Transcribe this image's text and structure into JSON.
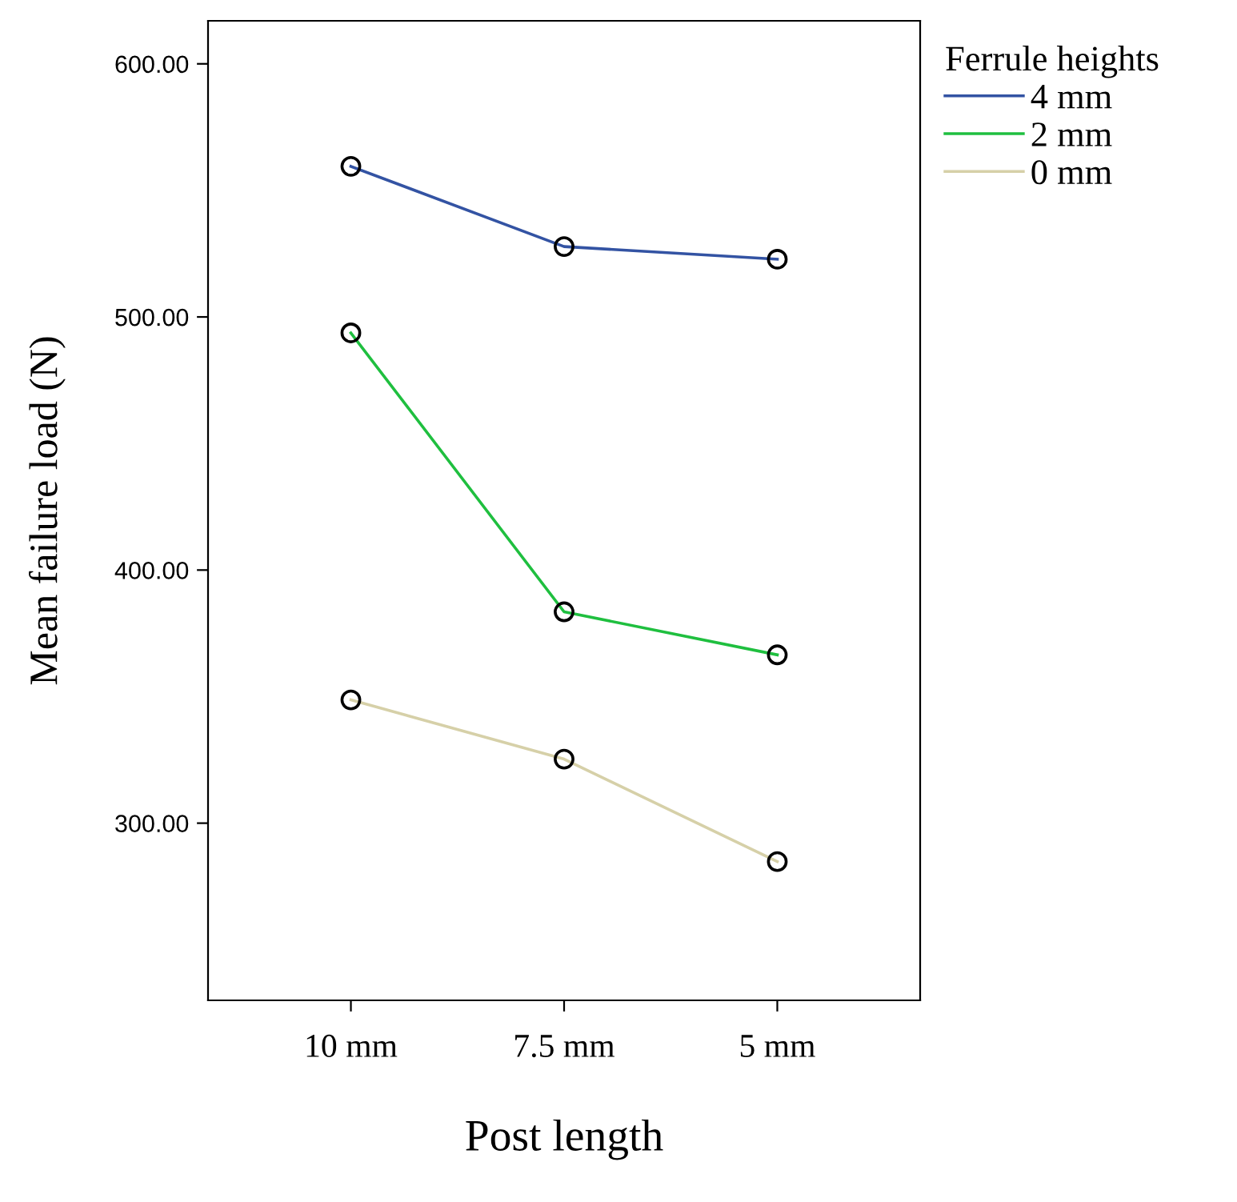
{
  "chart_data": {
    "type": "line",
    "xlabel": "Post length",
    "ylabel": "Mean failure load (N)",
    "legend_title": "Ferrule heights",
    "categories": [
      "10 mm",
      "7.5 mm",
      "5 mm"
    ],
    "series": [
      {
        "name": "4 mm",
        "color": "#3353a3",
        "values": [
          559.5,
          527.8,
          522.8
        ]
      },
      {
        "name": "2 mm",
        "color": "#1fbf3f",
        "values": [
          493.7,
          383.5,
          366.5
        ]
      },
      {
        "name": "0 mm",
        "color": "#d6d0a8",
        "values": [
          348.7,
          325.3,
          284.8
        ]
      }
    ],
    "ylim": [
      230,
      617
    ],
    "yticks": [
      {
        "value": 300,
        "label": "300.00"
      },
      {
        "value": 400,
        "label": "400.00"
      },
      {
        "value": 500,
        "label": "500.00"
      },
      {
        "value": 600,
        "label": "600.00"
      }
    ],
    "grid": false,
    "legend": "top right",
    "marker": "circle",
    "line_style": "solid"
  }
}
